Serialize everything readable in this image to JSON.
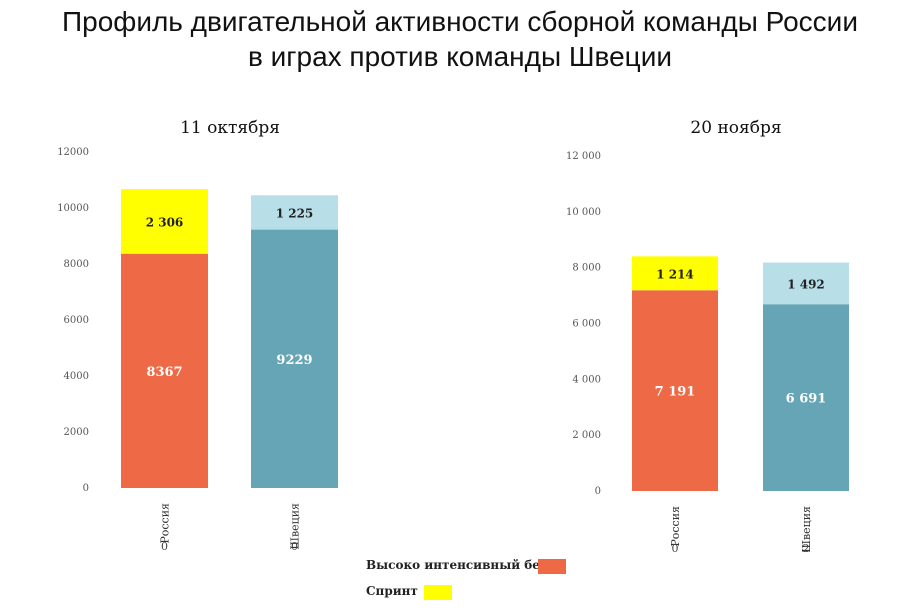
{
  "title_line1": "Профиль двигательной активности сборной команды России",
  "title_line2": "в играх против команды Швеции",
  "colors": {
    "russia_main": "#ee6a46",
    "sprint": "#ffff00",
    "sweden_main": "#65a5b6",
    "sweden_top": "#b8dee8"
  },
  "legend": [
    {
      "label": "Высоко интенсивный бег",
      "color": "#ee6a46"
    },
    {
      "label": "Спринт",
      "color": "#ffff00"
    }
  ],
  "chart_data": [
    {
      "type": "bar",
      "stacked": true,
      "title": "11 октября",
      "categories": [
        "Россия",
        "Швеция"
      ],
      "category_sublabels": [
        "0",
        "0"
      ],
      "ylim": [
        0,
        12000
      ],
      "yticks": [
        "0",
        "2000",
        "4000",
        "6000",
        "8000",
        "10000",
        "12000"
      ],
      "series": [
        {
          "values": [
            8367,
            9229
          ],
          "labels": [
            "8367",
            "9229"
          ],
          "colors": [
            "#ee6a46",
            "#65a5b6"
          ]
        },
        {
          "values": [
            2306,
            1225
          ],
          "labels": [
            "2 306",
            "1 225"
          ],
          "colors": [
            "#ffff00",
            "#b8dee8"
          ]
        }
      ]
    },
    {
      "type": "bar",
      "stacked": true,
      "title": "20 ноября",
      "categories": [
        "Россия",
        "Швеция"
      ],
      "category_sublabels": [
        "0",
        "2"
      ],
      "ylim": [
        0,
        12000
      ],
      "yticks": [
        "0",
        "2 000",
        "4 000",
        "6 000",
        "8 000",
        "10 000",
        "12 000"
      ],
      "series": [
        {
          "values": [
            7191,
            6691
          ],
          "labels": [
            "7 191",
            "6 691"
          ],
          "colors": [
            "#ee6a46",
            "#65a5b6"
          ]
        },
        {
          "values": [
            1214,
            1492
          ],
          "labels": [
            "1 214",
            "1 492"
          ],
          "colors": [
            "#ffff00",
            "#b8dee8"
          ]
        }
      ]
    }
  ]
}
